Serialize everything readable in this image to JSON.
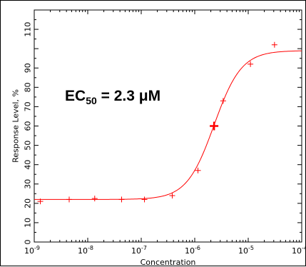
{
  "chart_data": {
    "type": "scatter",
    "title": "",
    "xlabel": "Concentration",
    "ylabel": "Response Level, %",
    "x_scale": "log",
    "xlim": [
      1e-09,
      0.0001
    ],
    "ylim": [
      0,
      120
    ],
    "grid": false,
    "legend": "none",
    "x_ticks": [
      {
        "value": 1e-09,
        "base": "10",
        "exp": "-9"
      },
      {
        "value": 1e-08,
        "base": "10",
        "exp": "-8"
      },
      {
        "value": 1e-07,
        "base": "10",
        "exp": "-7"
      },
      {
        "value": 1e-06,
        "base": "10",
        "exp": "-6"
      },
      {
        "value": 1e-05,
        "base": "10",
        "exp": "-5"
      },
      {
        "value": 0.0001,
        "base": "10",
        "exp": "-4"
      }
    ],
    "y_ticks": [
      0,
      10,
      20,
      30,
      40,
      50,
      60,
      70,
      80,
      90,
      110
    ],
    "points": {
      "x": [
        1.3e-09,
        4.5e-09,
        1.35e-08,
        4.3e-08,
        1.15e-07,
        3.8e-07,
        1.15e-06,
        2.3e-06,
        3.4e-06,
        1.1e-05,
        3.1e-05
      ],
      "y": [
        21,
        22,
        22.5,
        22,
        22,
        24,
        37,
        60,
        73,
        92,
        102
      ],
      "highlight_x": 2.3e-06,
      "highlight_y": 60
    },
    "fit_curve": {
      "model": "four-parameter logistic",
      "bottom": 22,
      "top": 99,
      "ec50": 2.3e-06,
      "hill_slope": 1.7
    },
    "annotation": {
      "prefix": "EC",
      "subscript": "50",
      "text": " = 2.3 μM"
    },
    "colors": {
      "data": "#ff0000",
      "axis": "#000000",
      "background": "#ffffff"
    }
  }
}
